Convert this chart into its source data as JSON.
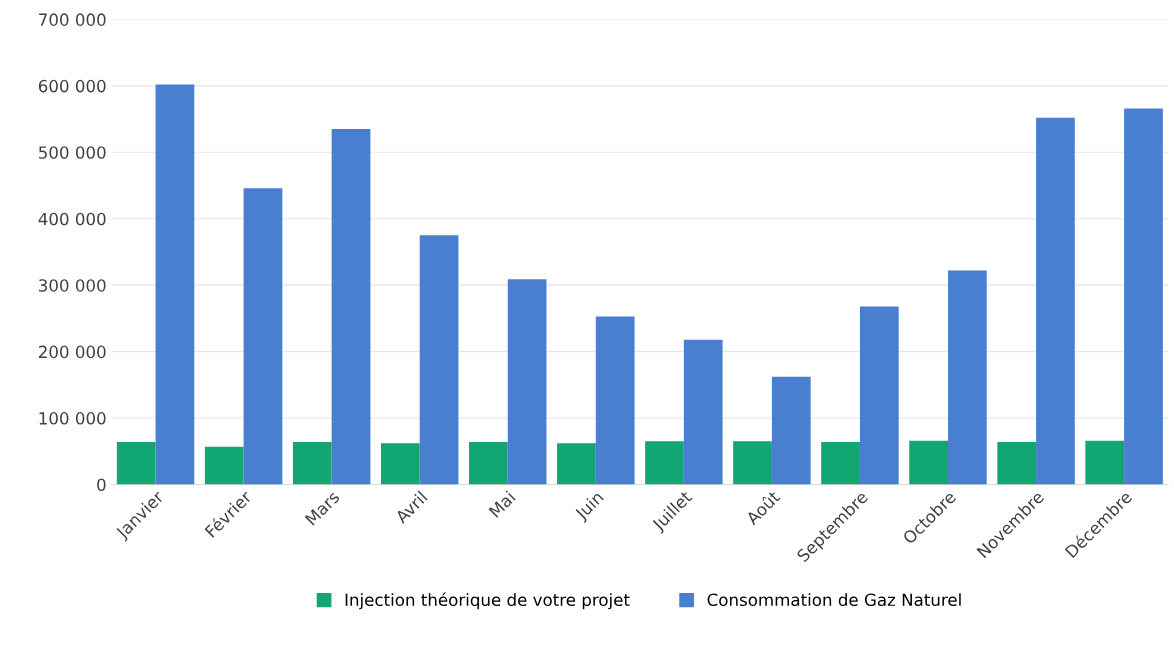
{
  "chart_data": {
    "type": "bar",
    "categories": [
      "Janvier",
      "Février",
      "Mars",
      "Avril",
      "Mai",
      "Juin",
      "Juillet",
      "Août",
      "Septembre",
      "Octobre",
      "Novembre",
      "Décembre"
    ],
    "series": [
      {
        "name": "Injection théorique de votre projet",
        "color": "#12a673",
        "values": [
          64000,
          57000,
          64000,
          62000,
          64000,
          62000,
          65000,
          65000,
          64000,
          66000,
          64000,
          66000
        ]
      },
      {
        "name": "Consommation de Gaz Naturel",
        "color": "#4a7fd0",
        "values": [
          602000,
          446000,
          535000,
          375000,
          309000,
          253000,
          218000,
          162000,
          268000,
          322000,
          552000,
          566000
        ]
      }
    ],
    "ylim": [
      0,
      700000
    ],
    "yticks": [
      {
        "value": 0,
        "label": "0"
      },
      {
        "value": 100000,
        "label": "100 000"
      },
      {
        "value": 200000,
        "label": "200 000"
      },
      {
        "value": 300000,
        "label": "300 000"
      },
      {
        "value": 400000,
        "label": "400 000"
      },
      {
        "value": 500000,
        "label": "500 000"
      },
      {
        "value": 600000,
        "label": "600 000"
      },
      {
        "value": 700000,
        "label": "700 000"
      }
    ],
    "grid": "y",
    "legend": "bottom"
  }
}
